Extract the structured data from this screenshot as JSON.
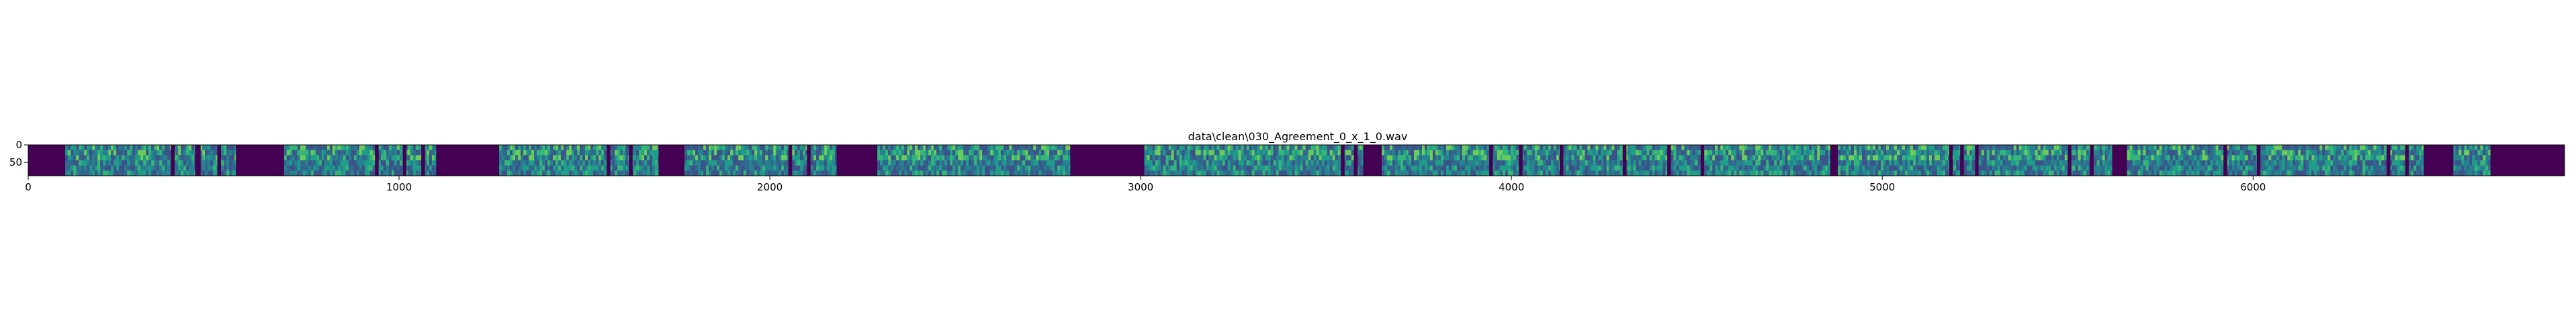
{
  "chart_data": {
    "type": "heatmap",
    "title": "data\\clean\\030_Agreement_0_x_1_0.wav",
    "xlabel": "",
    "ylabel": "",
    "xlim": [
      0,
      6840
    ],
    "ylim": [
      88,
      0
    ],
    "colormap": "viridis",
    "x_ticks": [
      0,
      1000,
      2000,
      3000,
      4000,
      5000,
      6000
    ],
    "y_ticks": [
      0,
      50
    ],
    "silent_color": "#440154",
    "active_segments": [
      [
        100,
        560
      ],
      [
        690,
        1100
      ],
      [
        1270,
        1700
      ],
      [
        1770,
        2180
      ],
      [
        2290,
        2810
      ],
      [
        3010,
        3600
      ],
      [
        3650,
        4130
      ],
      [
        4140,
        4510
      ],
      [
        4520,
        4860
      ],
      [
        4880,
        5250
      ],
      [
        5260,
        5620
      ],
      [
        5660,
        6010
      ],
      [
        6020,
        6460
      ],
      [
        6540,
        6640
      ]
    ],
    "silent_gaps_in_segments": [
      [
        385,
        395
      ],
      [
        450,
        465
      ],
      [
        510,
        520
      ],
      [
        935,
        945
      ],
      [
        1010,
        1020
      ],
      [
        1060,
        1070
      ],
      [
        1560,
        1570
      ],
      [
        1620,
        1630
      ],
      [
        2050,
        2060
      ],
      [
        2100,
        2110
      ],
      [
        3540,
        3550
      ],
      [
        3575,
        3585
      ],
      [
        3940,
        3950
      ],
      [
        4020,
        4030
      ],
      [
        4300,
        4310
      ],
      [
        4420,
        4430
      ],
      [
        4860,
        4870
      ],
      [
        5180,
        5190
      ],
      [
        5210,
        5220
      ],
      [
        5500,
        5510
      ],
      [
        5560,
        5570
      ],
      [
        5920,
        5930
      ],
      [
        6360,
        6370
      ],
      [
        6410,
        6420
      ]
    ]
  }
}
